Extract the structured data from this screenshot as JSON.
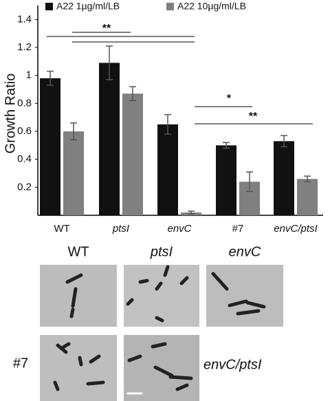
{
  "chart_data": {
    "type": "bar",
    "y_label": "Growth Ratio",
    "categories": [
      "WT",
      "ptsI",
      "envC",
      "#7",
      "envC/ptsI"
    ],
    "series": [
      {
        "name": "A22 1µg/ml/LB",
        "color": "#111111",
        "values": [
          0.98,
          1.09,
          0.65,
          0.5,
          0.53
        ],
        "errors": [
          0.05,
          0.12,
          0.07,
          0.02,
          0.04
        ]
      },
      {
        "name": "A22 10µg/ml/LB",
        "color": "#808080",
        "values": [
          0.6,
          0.87,
          0.02,
          0.24,
          0.26
        ],
        "errors": [
          0.06,
          0.05,
          0.01,
          0.07,
          0.02
        ]
      }
    ],
    "ylim": [
      0,
      1.5
    ],
    "yticks": [
      0.2,
      0.4,
      0.6,
      0.8,
      1.0,
      1.2,
      1.4
    ],
    "annotations": [
      {
        "text": "**"
      },
      {
        "text": "*"
      },
      {
        "text": "**"
      }
    ]
  },
  "micrographs": [
    {
      "label": "WT"
    },
    {
      "label": "ptsI"
    },
    {
      "label": "envC"
    },
    {
      "label": "#7"
    },
    {
      "label": "envC/ptsI"
    }
  ]
}
